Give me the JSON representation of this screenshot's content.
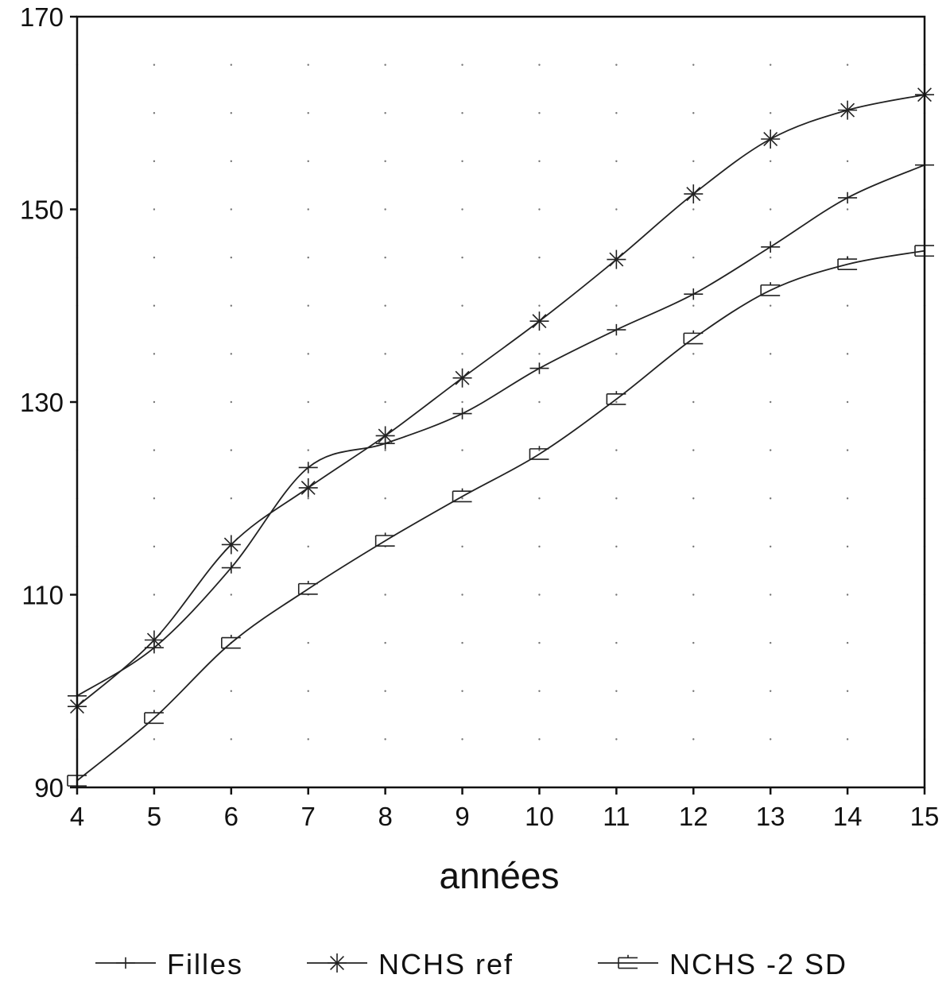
{
  "chart_data": {
    "type": "line",
    "title": "",
    "xlabel": "années",
    "ylabel": "",
    "xlim": [
      4,
      15
    ],
    "ylim": [
      90,
      170
    ],
    "x": [
      4,
      5,
      6,
      7,
      8,
      9,
      10,
      11,
      12,
      13,
      14,
      15
    ],
    "x_tick_labels": [
      "4",
      "5",
      "6",
      "7",
      "8",
      "9",
      "10",
      "11",
      "12",
      "13",
      "14",
      "15"
    ],
    "y_tick_labels": [
      "90",
      "110",
      "130",
      "150",
      "170"
    ],
    "y_ticks": [
      90,
      110,
      130,
      150,
      170
    ],
    "grid": "dotted",
    "legend_position": "bottom",
    "series": [
      {
        "name": "Filles",
        "marker": "plus",
        "values": [
          99.5,
          104.5,
          112.8,
          123.2,
          125.7,
          128.8,
          133.5,
          137.5,
          141.2,
          146.1,
          151.2,
          154.6
        ]
      },
      {
        "name": "NCHS ref",
        "marker": "asterisk",
        "values": [
          98.4,
          105.3,
          115.2,
          121.1,
          126.5,
          132.5,
          138.4,
          144.8,
          151.6,
          157.3,
          160.3,
          161.9
        ]
      },
      {
        "name": "NCHS -2 SD",
        "marker": "double-bar",
        "values": [
          90.7,
          97.2,
          105.0,
          110.6,
          115.6,
          120.2,
          124.6,
          130.3,
          136.6,
          141.6,
          144.3,
          145.7
        ]
      }
    ]
  }
}
